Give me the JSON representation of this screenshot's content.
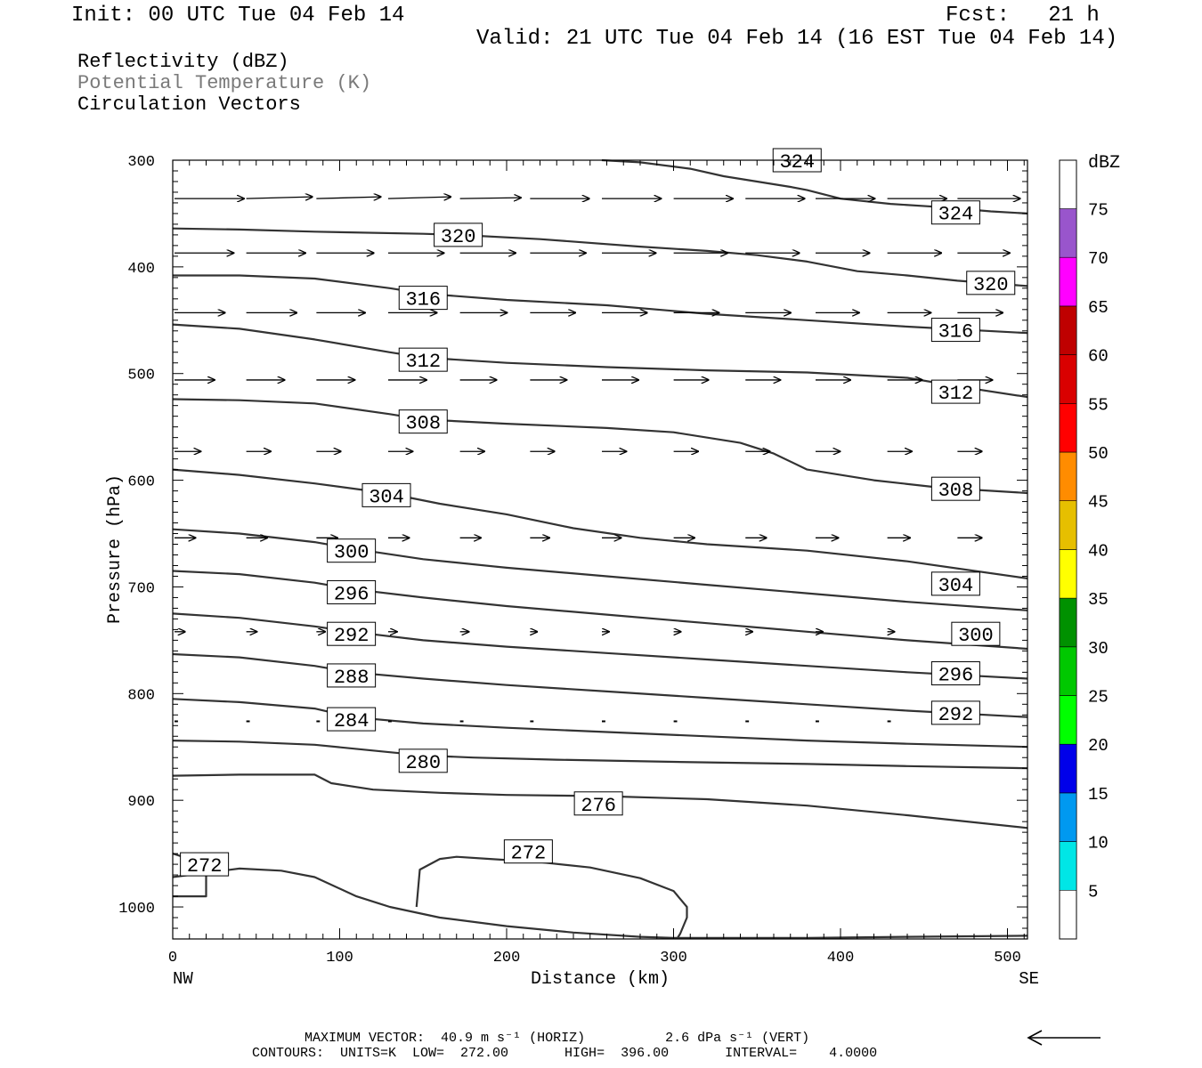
{
  "header": {
    "init": "Init: 00 UTC Tue 04 Feb 14",
    "fcst": "Fcst:   21 h",
    "valid": "Valid: 21 UTC Tue 04 Feb 14 (16 EST Tue 04 Feb 14)"
  },
  "legend": {
    "line1": "Reflectivity (dBZ)",
    "line2": "Potential Temperature (K)",
    "line3": "Circulation Vectors"
  },
  "footer": {
    "max_vector": "MAXIMUM VECTOR:  40.9 m s⁻¹ (HORIZ)          2.6 dPa s⁻¹ (VERT)",
    "contours": "CONTOURS:  UNITS=K  LOW=  272.00       HIGH=  396.00       INTERVAL=    4.0000"
  },
  "colors": {
    "contour": "#333333",
    "legend_gray": "#7a7a7a"
  },
  "chart_data": {
    "type": "line",
    "title": "",
    "xlabel": "Distance (km)",
    "ylabel": "Pressure (hPa)",
    "xlim": [
      0,
      512
    ],
    "ylim": [
      300,
      1030
    ],
    "y_inverted": true,
    "x_ticks": [
      "0",
      "100",
      "200",
      "300",
      "400",
      "500"
    ],
    "y_ticks": [
      "300",
      "400",
      "500",
      "600",
      "700",
      "800",
      "900",
      "1000"
    ],
    "x_end_labels": {
      "left": "NW",
      "right": "SE"
    },
    "colorbar": {
      "title": "dBZ",
      "labels": [
        "5",
        "10",
        "15",
        "20",
        "25",
        "30",
        "35",
        "40",
        "45",
        "50",
        "55",
        "60",
        "65",
        "70",
        "75"
      ],
      "colors": [
        "#00e6e6",
        "#0099f0",
        "#0000ea",
        "#00ff00",
        "#00c800",
        "#009100",
        "#ffff00",
        "#e6bf00",
        "#ff8c00",
        "#ff0000",
        "#d90000",
        "#bf0000",
        "#ff00ff",
        "#9955cc"
      ]
    },
    "series": [
      {
        "name": "272",
        "label_x": 19,
        "label_p": 960,
        "x": [
          0,
          20,
          20,
          0
        ],
        "p": [
          990,
          990,
          960,
          950
        ]
      },
      {
        "name": "272",
        "label_x": 213,
        "label_p": 948,
        "x": [
          146,
          148,
          160,
          170,
          190,
          220,
          250,
          280,
          300,
          308,
          308,
          304,
          302
        ],
        "p": [
          1000,
          965,
          955,
          953,
          955,
          958,
          963,
          973,
          985,
          1000,
          1010,
          1025,
          1030
        ]
      },
      {
        "name": "",
        "x": [
          0,
          20,
          40,
          65,
          85,
          110,
          130,
          160,
          200,
          240,
          280,
          300,
          320,
          380,
          440,
          512
        ],
        "p": [
          972,
          968,
          964,
          966,
          972,
          990,
          1000,
          1010,
          1018,
          1024,
          1028,
          1029,
          1029,
          1029,
          1028,
          1027
        ]
      },
      {
        "name": "276",
        "label_x": 255,
        "label_p": 903,
        "x": [
          0,
          40,
          85,
          95,
          120,
          160,
          200,
          255,
          320,
          380,
          440,
          512
        ],
        "p": [
          877,
          876,
          876,
          884,
          890,
          893,
          895,
          896,
          899,
          905,
          914,
          926
        ]
      },
      {
        "name": "280",
        "label_x": 150,
        "label_p": 863,
        "x": [
          0,
          40,
          85,
          130,
          150,
          180,
          230,
          300,
          380,
          440,
          512
        ],
        "p": [
          844,
          845,
          848,
          855,
          858,
          860,
          862,
          864,
          866,
          868,
          870
        ]
      },
      {
        "name": "284",
        "label_x": 107,
        "label_p": 824,
        "x": [
          0,
          40,
          85,
          107,
          150,
          200,
          260,
          320,
          380,
          440,
          512
        ],
        "p": [
          805,
          808,
          814,
          822,
          828,
          832,
          836,
          840,
          844,
          847,
          850
        ]
      },
      {
        "name": "288",
        "label_x": 107,
        "label_p": 783,
        "x": [
          0,
          40,
          85,
          107,
          150,
          200,
          260,
          320,
          380,
          440,
          512
        ],
        "p": [
          763,
          766,
          774,
          780,
          786,
          792,
          798,
          804,
          810,
          816,
          822
        ]
      },
      {
        "name": "292",
        "label_x": 107,
        "label_p": 744,
        "x": [
          0,
          40,
          85,
          107,
          150,
          200,
          260,
          320,
          380,
          440,
          512
        ],
        "p": [
          725,
          729,
          737,
          742,
          750,
          756,
          762,
          768,
          774,
          780,
          786
        ]
      },
      {
        "name": "296",
        "label_x": 107,
        "label_p": 705,
        "x": [
          0,
          40,
          85,
          107,
          150,
          200,
          260,
          320,
          380,
          440,
          512
        ],
        "p": [
          685,
          688,
          696,
          702,
          710,
          718,
          726,
          734,
          742,
          750,
          758
        ]
      },
      {
        "name": "300",
        "label_x": 107,
        "label_p": 666,
        "x": [
          0,
          40,
          85,
          107,
          150,
          200,
          260,
          320,
          380,
          440,
          512
        ],
        "p": [
          646,
          650,
          658,
          664,
          674,
          682,
          690,
          698,
          706,
          714,
          722
        ]
      },
      {
        "name": "304",
        "label_x": 128,
        "label_p": 614,
        "x": [
          0,
          40,
          85,
          128,
          160,
          200,
          240,
          280,
          320,
          380,
          440,
          512
        ],
        "p": [
          590,
          595,
          603,
          612,
          622,
          632,
          645,
          654,
          660,
          666,
          676,
          692
        ]
      },
      {
        "name": "308",
        "label_x": 150,
        "label_p": 545,
        "x": [
          0,
          40,
          85,
          130,
          150,
          200,
          260,
          300,
          340,
          360,
          380,
          420,
          460,
          512
        ],
        "p": [
          524,
          525,
          528,
          538,
          543,
          547,
          551,
          555,
          565,
          575,
          590,
          600,
          607,
          612
        ]
      },
      {
        "name": "312",
        "label_x": 150,
        "label_p": 487,
        "x": [
          0,
          40,
          85,
          130,
          150,
          200,
          260,
          320,
          380,
          440,
          470,
          512
        ],
        "p": [
          454,
          458,
          468,
          480,
          485,
          490,
          494,
          497,
          499,
          504,
          512,
          522
        ]
      },
      {
        "name": "316",
        "label_x": 150,
        "label_p": 429,
        "x": [
          0,
          40,
          85,
          130,
          150,
          200,
          260,
          320,
          380,
          440,
          512
        ],
        "p": [
          408,
          408,
          411,
          420,
          425,
          431,
          436,
          444,
          450,
          456,
          462
        ]
      },
      {
        "name": "320",
        "label_x": 171,
        "label_p": 370,
        "x": [
          0,
          40,
          85,
          150,
          171,
          220,
          280,
          320,
          350,
          380,
          410,
          440,
          470,
          512
        ],
        "p": [
          364,
          365,
          367,
          369,
          370,
          374,
          381,
          385,
          389,
          395,
          404,
          408,
          413,
          418
        ]
      },
      {
        "name": "324",
        "label_x": 374,
        "label_p": 300,
        "x": [
          257,
          280,
          310,
          330,
          350,
          370,
          380,
          400,
          430,
          460,
          490,
          512
        ],
        "p": [
          300,
          302,
          308,
          315,
          320,
          325,
          328,
          336,
          341,
          344,
          348,
          350
        ]
      }
    ],
    "edge_labels": [
      {
        "text": "324",
        "x": 469,
        "p": 349
      },
      {
        "text": "320",
        "x": 490,
        "p": 415
      },
      {
        "text": "316",
        "x": 469,
        "p": 459
      },
      {
        "text": "312",
        "x": 469,
        "p": 517
      },
      {
        "text": "308",
        "x": 469,
        "p": 608
      },
      {
        "text": "304",
        "x": 469,
        "p": 697
      },
      {
        "text": "300",
        "x": 481,
        "p": 744
      },
      {
        "text": "296",
        "x": 469,
        "p": 781
      },
      {
        "text": "292",
        "x": 469,
        "p": 818
      }
    ],
    "vectors": {
      "description": "Circulation vectors (horizontal wind), arrow length proportional to speed",
      "x": [
        0,
        43,
        85,
        128,
        171,
        213,
        256,
        299,
        342,
        384,
        427,
        469
      ],
      "rows": [
        {
          "p": 336,
          "u": [
            40,
            38,
            37,
            36,
            35,
            34,
            34,
            34,
            34,
            34,
            34,
            36
          ],
          "w": [
            0,
            -1,
            -1,
            -1,
            -0.5,
            0,
            0,
            0,
            0,
            0,
            0,
            0
          ]
        },
        {
          "p": 387,
          "u": [
            34,
            34,
            33,
            32,
            32,
            32,
            31,
            31,
            31,
            31,
            31,
            30
          ],
          "w": [
            0,
            0,
            0,
            0,
            0,
            0,
            0,
            0,
            0,
            0,
            0,
            0
          ]
        },
        {
          "p": 443,
          "u": [
            29,
            29,
            28,
            28,
            27,
            26,
            26,
            26,
            26,
            25,
            25,
            26
          ],
          "w": [
            0,
            0,
            0,
            0,
            0,
            0,
            0,
            0,
            0,
            0,
            0,
            0
          ]
        },
        {
          "p": 506,
          "u": [
            23,
            22,
            22,
            22,
            21,
            21,
            21,
            20,
            20,
            20,
            20,
            20
          ],
          "w": [
            0,
            0,
            0,
            0,
            0,
            0,
            0,
            0,
            0,
            0,
            0,
            0
          ]
        },
        {
          "p": 573,
          "u": [
            15,
            14,
            14,
            14,
            14,
            14,
            14,
            14,
            14,
            14,
            14,
            14
          ],
          "w": [
            0,
            0,
            0,
            0,
            0,
            0,
            0,
            0,
            0,
            0,
            0,
            0
          ]
        },
        {
          "p": 654,
          "u": [
            12,
            12,
            12,
            12,
            12,
            11,
            11,
            12,
            12,
            13,
            13,
            14
          ],
          "w": [
            0,
            0,
            0,
            0,
            0,
            0,
            0,
            0,
            0,
            0,
            0,
            0
          ]
        },
        {
          "p": 742,
          "u": [
            6,
            6,
            5,
            5,
            5,
            4,
            4,
            4,
            4,
            4,
            4,
            4
          ],
          "w": [
            0,
            0,
            0,
            0,
            0,
            0,
            0,
            0,
            0,
            0,
            0,
            0
          ]
        },
        {
          "p": 826,
          "u": [
            2,
            2,
            2,
            2,
            2,
            2,
            2,
            2,
            2,
            2,
            2,
            2
          ],
          "w": [
            0,
            0,
            0,
            0,
            0,
            0,
            0,
            0,
            0,
            0,
            0,
            0
          ]
        }
      ]
    }
  }
}
